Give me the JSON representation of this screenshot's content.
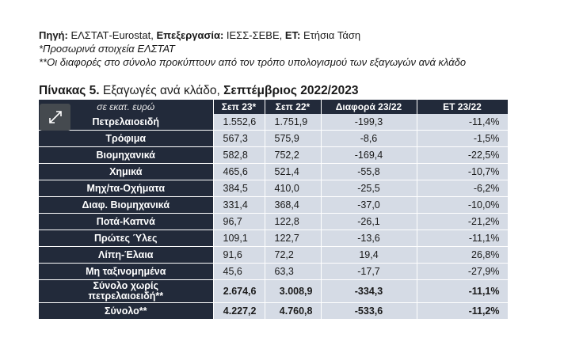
{
  "notes": {
    "source_label": "Πηγή:",
    "source_value": " ΕΛΣΤΑΤ-Eurostat, ",
    "processing_label": "Επεξεργασία:",
    "processing_value": " ΙΕΣΣ-ΣΕΒΕ, ",
    "et_label": "ΕΤ:",
    "et_value": " Ετήσια Τάση",
    "provisional": "*Προσωρινά στοιχεία ΕΛΣΤΑΤ",
    "differences": "**Οι διαφορές στο σύνολο προκύπτουν από τον τρόπο υπολογισμού των εξαγωγών ανά κλάδο"
  },
  "table_title": {
    "prefix": "Πίνακας 5.",
    "middle": " Εξαγωγές ανά κλάδο, ",
    "period": "Σεπτέμβριος 2022/2023"
  },
  "expand_button": {
    "icon": "expand-diagonal-icon"
  },
  "table": {
    "headers": [
      "σε εκατ. ευρώ",
      "Σεπ 23*",
      "Σεπ 22*",
      "Διαφορά 23/22",
      "ΕΤ 23/22"
    ],
    "rows": [
      {
        "label": "Πετρελαιοειδή",
        "sep23": "1.552,6",
        "sep22": "1.751,9",
        "diff": "-199,3",
        "et": "-11,4%"
      },
      {
        "label": "Τρόφιμα",
        "sep23": "567,3",
        "sep22": "575,9",
        "diff": "-8,6",
        "et": "-1,5%"
      },
      {
        "label": "Βιομηχανικά",
        "sep23": "582,8",
        "sep22": "752,2",
        "diff": "-169,4",
        "et": "-22,5%"
      },
      {
        "label": "Χημικά",
        "sep23": "465,6",
        "sep22": "521,4",
        "diff": "-55,8",
        "et": "-10,7%"
      },
      {
        "label": "Μηχ/τα-Οχήματα",
        "sep23": "384,5",
        "sep22": "410,0",
        "diff": "-25,5",
        "et": "-6,2%"
      },
      {
        "label": "Διαφ. Βιομηχανικά",
        "sep23": "331,4",
        "sep22": "368,4",
        "diff": "-37,0",
        "et": "-10,0%"
      },
      {
        "label": "Ποτά-Καπνά",
        "sep23": "96,7",
        "sep22": "122,8",
        "diff": "-26,1",
        "et": "-21,2%"
      },
      {
        "label": "Πρώτες Ύλες",
        "sep23": "109,1",
        "sep22": "122,7",
        "diff": "-13,6",
        "et": "-11,1%"
      },
      {
        "label": "Λίπη-Έλαια",
        "sep23": "91,6",
        "sep22": "72,2",
        "diff": "19,4",
        "et": "26,8%"
      },
      {
        "label": "Μη ταξινομημένα",
        "sep23": "45,6",
        "sep22": "63,3",
        "diff": "-17,7",
        "et": "-27,9%"
      }
    ],
    "total_ex_oil": {
      "label_line1": "Σύνολο χωρίς",
      "label_line2": "πετρελαιοειδή**",
      "sep23": "2.674,6",
      "sep22": "3.008,9",
      "diff": "-334,3",
      "et": "-11,1%"
    },
    "total": {
      "label": "Σύνολο**",
      "sep23": "4.227,2",
      "sep22": "4.760,8",
      "diff": "-533,6",
      "et": "-11,2%"
    }
  }
}
